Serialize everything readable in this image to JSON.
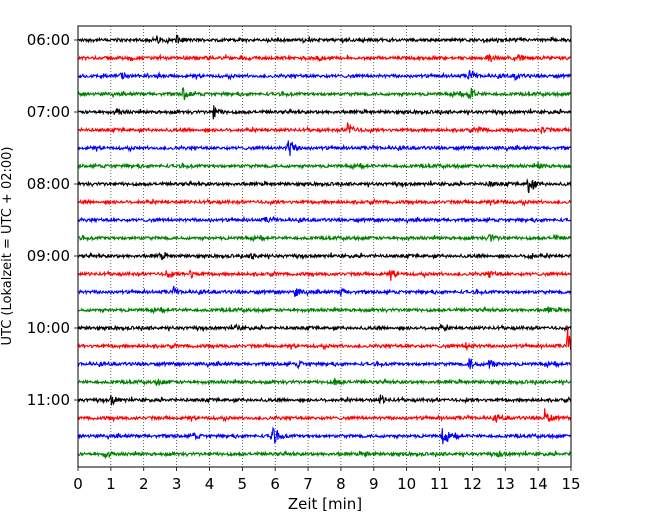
{
  "chart_data": {
    "type": "line",
    "title": "",
    "xlabel": "Zeit  [min]",
    "ylabel": "UTC (Lokalzeit = UTC + 02:00)",
    "xlim": [
      0,
      15
    ],
    "x_ticks": [
      0,
      1,
      2,
      3,
      4,
      5,
      6,
      7,
      8,
      9,
      10,
      11,
      12,
      13,
      14,
      15
    ],
    "x_tick_labels": [
      "0",
      "1",
      "2",
      "3",
      "4",
      "5",
      "6",
      "7",
      "8",
      "9",
      "10",
      "11",
      "12",
      "13",
      "14",
      "15"
    ],
    "y_tick_labels": [
      "06:00",
      "07:00",
      "08:00",
      "09:00",
      "10:00",
      "11:00"
    ],
    "y_tick_rows": [
      0,
      4,
      8,
      12,
      16,
      20
    ],
    "vertical_grid": "dotted",
    "row_colors": [
      "#000000",
      "#ff0000",
      "#0000ff",
      "#008000"
    ],
    "row_minutes": 15,
    "start_time": "06:00",
    "rows": [
      {
        "row": 0,
        "color": "#000000",
        "events": [
          {
            "t": 3.0,
            "amp": 0.55
          },
          {
            "t": 2.4,
            "amp": 0.35
          },
          {
            "t": 8.0,
            "amp": 0.3
          }
        ]
      },
      {
        "row": 1,
        "color": "#ff0000",
        "events": [
          {
            "t": 13.4,
            "amp": 0.4
          },
          {
            "t": 7.3,
            "amp": 0.3
          },
          {
            "t": 12.5,
            "amp": 0.3
          }
        ]
      },
      {
        "row": 2,
        "color": "#0000ff",
        "events": [
          {
            "t": 11.9,
            "amp": 0.6
          },
          {
            "t": 1.3,
            "amp": 0.35
          },
          {
            "t": 13.3,
            "amp": 0.3
          }
        ]
      },
      {
        "row": 3,
        "color": "#008000",
        "events": [
          {
            "t": 3.2,
            "amp": 0.75
          },
          {
            "t": 11.9,
            "amp": 1.0
          }
        ]
      },
      {
        "row": 4,
        "color": "#000000",
        "events": [
          {
            "t": 4.1,
            "amp": 0.8
          },
          {
            "t": 1.2,
            "amp": 0.35
          }
        ]
      },
      {
        "row": 5,
        "color": "#ff0000",
        "events": [
          {
            "t": 8.2,
            "amp": 1.0
          },
          {
            "t": 14.1,
            "amp": 0.55
          },
          {
            "t": 12.2,
            "amp": 0.3
          }
        ]
      },
      {
        "row": 6,
        "color": "#0000ff",
        "events": [
          {
            "t": 6.4,
            "amp": 1.35
          }
        ]
      },
      {
        "row": 7,
        "color": "#008000",
        "events": [
          {
            "t": 14.0,
            "amp": 0.3
          }
        ]
      },
      {
        "row": 8,
        "color": "#000000",
        "events": [
          {
            "t": 13.7,
            "amp": 1.25
          },
          {
            "t": 12.5,
            "amp": 0.3
          }
        ]
      },
      {
        "row": 9,
        "color": "#ff0000",
        "events": [
          {
            "t": 12.8,
            "amp": 0.3
          }
        ]
      },
      {
        "row": 10,
        "color": "#0000ff",
        "events": [
          {
            "t": 5.7,
            "amp": 0.3
          }
        ]
      },
      {
        "row": 11,
        "color": "#008000",
        "events": [
          {
            "t": 12.5,
            "amp": 0.55
          },
          {
            "t": 14.5,
            "amp": 0.3
          }
        ]
      },
      {
        "row": 12,
        "color": "#000000",
        "events": [
          {
            "t": 2.5,
            "amp": 0.4
          },
          {
            "t": 5.3,
            "amp": 0.35
          },
          {
            "t": 13.7,
            "amp": 0.45
          }
        ]
      },
      {
        "row": 13,
        "color": "#ff0000",
        "events": [
          {
            "t": 2.7,
            "amp": 0.55
          },
          {
            "t": 3.4,
            "amp": 0.45
          },
          {
            "t": 9.5,
            "amp": 0.45
          },
          {
            "t": 12.5,
            "amp": 0.4
          }
        ]
      },
      {
        "row": 14,
        "color": "#0000ff",
        "events": [
          {
            "t": 6.6,
            "amp": 0.5
          },
          {
            "t": 8.0,
            "amp": 0.5
          },
          {
            "t": 2.9,
            "amp": 0.35
          }
        ]
      },
      {
        "row": 15,
        "color": "#008000",
        "events": [
          {
            "t": 14.3,
            "amp": 0.3
          }
        ]
      },
      {
        "row": 16,
        "color": "#000000",
        "events": [
          {
            "t": 11.0,
            "amp": 0.35
          },
          {
            "t": 4.8,
            "amp": 0.3
          }
        ]
      },
      {
        "row": 17,
        "color": "#ff0000",
        "events": [
          {
            "t": 14.9,
            "amp": 1.7
          },
          {
            "t": 11.8,
            "amp": 0.35
          }
        ]
      },
      {
        "row": 18,
        "color": "#0000ff",
        "events": [
          {
            "t": 11.9,
            "amp": 0.75
          },
          {
            "t": 12.5,
            "amp": 0.75
          },
          {
            "t": 6.7,
            "amp": 0.35
          }
        ]
      },
      {
        "row": 19,
        "color": "#008000",
        "events": [
          {
            "t": 7.8,
            "amp": 0.5
          },
          {
            "t": 2.4,
            "amp": 0.35
          }
        ]
      },
      {
        "row": 20,
        "color": "#000000",
        "events": [
          {
            "t": 1.0,
            "amp": 0.6
          },
          {
            "t": 9.2,
            "amp": 0.45
          }
        ]
      },
      {
        "row": 21,
        "color": "#ff0000",
        "events": [
          {
            "t": 14.2,
            "amp": 1.0
          },
          {
            "t": 12.7,
            "amp": 0.4
          }
        ]
      },
      {
        "row": 22,
        "color": "#0000ff",
        "events": [
          {
            "t": 5.9,
            "amp": 1.3
          },
          {
            "t": 11.1,
            "amp": 1.25
          },
          {
            "t": 3.5,
            "amp": 0.35
          }
        ]
      },
      {
        "row": 23,
        "color": "#008000",
        "events": [
          {
            "t": 0.8,
            "amp": 0.45
          },
          {
            "t": 8.7,
            "amp": 0.3
          },
          {
            "t": 12.8,
            "amp": 0.3
          }
        ]
      }
    ]
  }
}
